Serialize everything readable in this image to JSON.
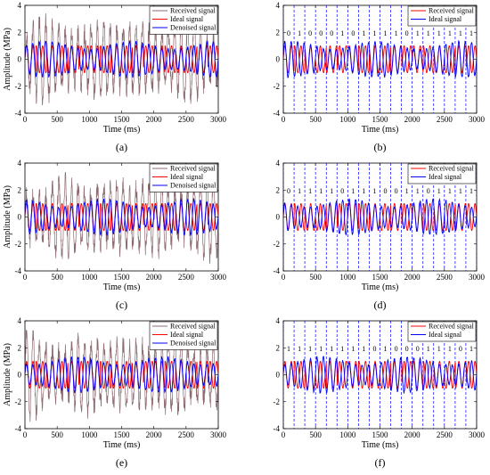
{
  "colors": {
    "received": "#8c6a70",
    "ideal": "#ff0000",
    "denoised": "#0000ff",
    "bits": "#0000ff"
  },
  "chart_data": [
    {
      "type": "line",
      "caption": "(a)",
      "xlabel": "Time (ms)",
      "ylabel": "Amplitude (MPa)",
      "xlim": [
        0,
        3000
      ],
      "ylim": [
        -4,
        4
      ],
      "xticks": [
        0,
        500,
        1000,
        1500,
        2000,
        2500,
        3000
      ],
      "yticks": [
        -4,
        -2,
        0,
        2,
        4
      ],
      "legend": {
        "position": "top-right",
        "entries": [
          "Received signal",
          "Ideal signal",
          "Denoised signal"
        ]
      },
      "series": [
        {
          "name": "Received signal",
          "key": "received",
          "carrier_period_ms": 100,
          "amplitude_range": [
            -3.8,
            3.6
          ]
        },
        {
          "name": "Ideal signal",
          "key": "ideal",
          "carrier_period_ms": 100,
          "amplitude": 1
        },
        {
          "name": "Denoised signal",
          "key": "denoised",
          "carrier_period_ms": 100,
          "amplitude": 1.2
        }
      ]
    },
    {
      "type": "line",
      "caption": "(b)",
      "xlabel": "Time (ms)",
      "ylabel": "",
      "xlim": [
        0,
        3000
      ],
      "ylim": [
        -4,
        4
      ],
      "xticks": [
        0,
        500,
        1000,
        1500,
        2000,
        2500,
        3000
      ],
      "yticks": [
        -4,
        -2,
        0,
        2,
        4
      ],
      "legend": {
        "position": "top-right",
        "entries": [
          "Received signal",
          "Ideal signal"
        ]
      },
      "bit_boundaries_ms": [
        0,
        167,
        333,
        500,
        667,
        833,
        1000,
        1167,
        1333,
        1500,
        1667,
        1833,
        2000,
        2167,
        2333,
        2500,
        2667,
        2833,
        3000
      ],
      "bits": [
        "0",
        "1",
        "0",
        "0",
        "0",
        "1",
        "0",
        "1",
        "1",
        "1",
        "1",
        "0",
        "1",
        "1",
        "1",
        "1",
        "1",
        "1"
      ],
      "series": [
        {
          "name": "Received signal",
          "key": "ideal",
          "carrier_period_ms": 100,
          "amplitude": 1
        },
        {
          "name": "Ideal signal",
          "key": "denoised",
          "carrier_period_ms": 100,
          "amplitude": 1.2
        }
      ]
    },
    {
      "type": "line",
      "caption": "(c)",
      "xlabel": "Time (ms)",
      "ylabel": "Amplitude (MPa)",
      "xlim": [
        0,
        3000
      ],
      "ylim": [
        -4,
        4
      ],
      "xticks": [
        0,
        500,
        1000,
        1500,
        2000,
        2500,
        3000
      ],
      "yticks": [
        -4,
        -2,
        0,
        2,
        4
      ],
      "legend": {
        "position": "top-right",
        "entries": [
          "Received signal",
          "Ideal signal",
          "Denoised signal"
        ]
      },
      "series": [
        {
          "name": "Received signal",
          "key": "received",
          "carrier_period_ms": 100,
          "amplitude_range": [
            -3.9,
            3.6
          ]
        },
        {
          "name": "Ideal signal",
          "key": "ideal",
          "carrier_period_ms": 100,
          "amplitude": 1
        },
        {
          "name": "Denoised signal",
          "key": "denoised",
          "carrier_period_ms": 100,
          "amplitude": 1.2
        }
      ]
    },
    {
      "type": "line",
      "caption": "(d)",
      "xlabel": "Time (ms)",
      "ylabel": "",
      "xlim": [
        0,
        3000
      ],
      "ylim": [
        -4,
        4
      ],
      "xticks": [
        0,
        500,
        1000,
        1500,
        2000,
        2500,
        3000
      ],
      "yticks": [
        -4,
        -2,
        0,
        2,
        4
      ],
      "legend": {
        "position": "top-right",
        "entries": [
          "Received signal",
          "Ideal signal"
        ]
      },
      "bit_boundaries_ms": [
        0,
        167,
        333,
        500,
        667,
        833,
        1000,
        1167,
        1333,
        1500,
        1667,
        1833,
        2000,
        2167,
        2333,
        2500,
        2667,
        2833,
        3000
      ],
      "bits": [
        "0",
        "1",
        "1",
        "1",
        "1",
        "0",
        "1",
        "1",
        "1",
        "0",
        "0",
        "1",
        "1",
        "0",
        "1",
        "1",
        "1",
        "1"
      ],
      "series": [
        {
          "name": "Received signal",
          "key": "ideal",
          "carrier_period_ms": 100,
          "amplitude": 1
        },
        {
          "name": "Ideal signal",
          "key": "denoised",
          "carrier_period_ms": 100,
          "amplitude": 1.2
        }
      ]
    },
    {
      "type": "line",
      "caption": "(e)",
      "xlabel": "Time (ms)",
      "ylabel": "Amplitude (MPa)",
      "xlim": [
        0,
        3000
      ],
      "ylim": [
        -4,
        4
      ],
      "xticks": [
        0,
        500,
        1000,
        1500,
        2000,
        2500,
        3000
      ],
      "yticks": [
        -4,
        -2,
        0,
        2,
        4
      ],
      "legend": {
        "position": "top-right",
        "entries": [
          "Received signal",
          "Ideal signal",
          "Denoised signal"
        ]
      },
      "series": [
        {
          "name": "Received signal",
          "key": "received",
          "carrier_period_ms": 100,
          "amplitude_range": [
            -3.7,
            3.3
          ]
        },
        {
          "name": "Ideal signal",
          "key": "ideal",
          "carrier_period_ms": 100,
          "amplitude": 1
        },
        {
          "name": "Denoised signal",
          "key": "denoised",
          "carrier_period_ms": 100,
          "amplitude": 1.2
        }
      ]
    },
    {
      "type": "line",
      "caption": "(f)",
      "xlabel": "Time (ms)",
      "ylabel": "",
      "xlim": [
        0,
        3000
      ],
      "ylim": [
        -4,
        4
      ],
      "xticks": [
        0,
        500,
        1000,
        1500,
        2000,
        2500,
        3000
      ],
      "yticks": [
        -4,
        -2,
        0,
        2,
        4
      ],
      "legend": {
        "position": "top-right",
        "entries": [
          "Received signal",
          "Ideal signal"
        ]
      },
      "bit_boundaries_ms": [
        0,
        167,
        333,
        500,
        667,
        833,
        1000,
        1167,
        1333,
        1500,
        1667,
        1833,
        2000,
        2167,
        2333,
        2500,
        2667,
        2833,
        3000
      ],
      "bits": [
        "1",
        "1",
        "1",
        "1",
        "1",
        "1",
        "1",
        "1",
        "0",
        "1",
        "0",
        "0",
        "0",
        "1",
        "1",
        "1",
        "0",
        "1"
      ],
      "series": [
        {
          "name": "Received signal",
          "key": "ideal",
          "carrier_period_ms": 100,
          "amplitude": 1
        },
        {
          "name": "Ideal signal",
          "key": "denoised",
          "carrier_period_ms": 100,
          "amplitude": 1.2
        }
      ]
    }
  ]
}
